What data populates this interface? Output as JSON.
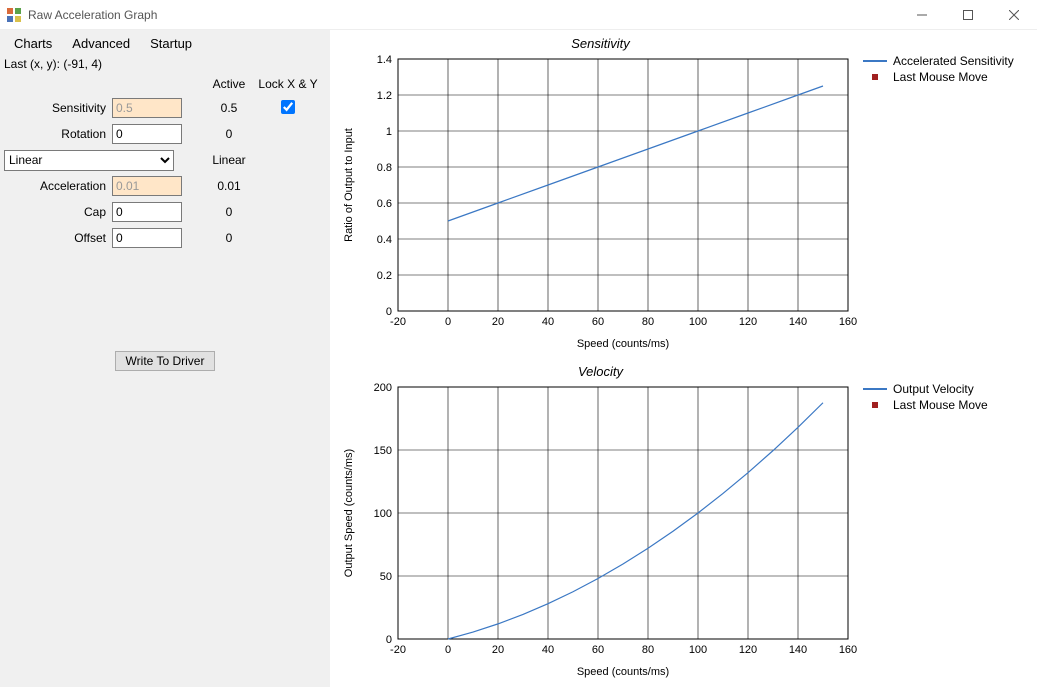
{
  "window": {
    "title": "Raw Acceleration Graph"
  },
  "menu": {
    "items": [
      "Charts",
      "Advanced",
      "Startup"
    ]
  },
  "last_xy_label": "Last (x, y): (-91, 4)",
  "columns": {
    "active": "Active",
    "lock": "Lock X & Y"
  },
  "fields": {
    "sensitivity": {
      "label": "Sensitivity",
      "value": "0.5",
      "active": "0.5",
      "highlight": true
    },
    "rotation": {
      "label": "Rotation",
      "value": "0",
      "active": "0",
      "highlight": false
    },
    "acceleration": {
      "label": "Acceleration",
      "value": "0.01",
      "active": "0.01",
      "highlight": true
    },
    "cap": {
      "label": "Cap",
      "value": "0",
      "active": "0",
      "highlight": false
    },
    "offset": {
      "label": "Offset",
      "value": "0",
      "active": "0",
      "highlight": false
    }
  },
  "combo": {
    "selected": "Linear",
    "active": "Linear"
  },
  "lock_xy_checked": true,
  "write_button": "Write To Driver",
  "chart1": {
    "title": "Sensitivity",
    "type": "line",
    "x_label": "Speed (counts/ms)",
    "y_label": "Ratio of Output to Input",
    "xlim": [
      -20,
      160
    ],
    "ylim": [
      0,
      1.4
    ],
    "xticks": [
      -20,
      0,
      20,
      40,
      60,
      80,
      100,
      120,
      140,
      160
    ],
    "yticks": [
      0,
      0.2,
      0.4,
      0.6,
      0.8,
      1.0,
      1.2,
      1.4
    ],
    "series": {
      "line": {
        "label": "Accelerated Sensitivity",
        "color": "#3b78c4",
        "points": [
          [
            0,
            0.5
          ],
          [
            20,
            0.6
          ],
          [
            40,
            0.7
          ],
          [
            60,
            0.8
          ],
          [
            80,
            0.9
          ],
          [
            100,
            1.0
          ],
          [
            120,
            1.1
          ],
          [
            140,
            1.2
          ],
          [
            150,
            1.25
          ]
        ]
      },
      "marker": {
        "label": "Last Mouse Move",
        "color": "#a02020"
      }
    },
    "grid_color": "#000000",
    "line_width": 1.2,
    "font_size_ticks": 11,
    "font_size_title": 13
  },
  "chart2": {
    "title": "Velocity",
    "type": "line",
    "x_label": "Speed (counts/ms)",
    "y_label": "Output Speed (counts/ms)",
    "xlim": [
      -20,
      160
    ],
    "ylim": [
      0,
      200
    ],
    "xticks": [
      -20,
      0,
      20,
      40,
      60,
      80,
      100,
      120,
      140,
      160
    ],
    "yticks": [
      0,
      50,
      100,
      150,
      200
    ],
    "series": {
      "line": {
        "label": "Output Velocity",
        "color": "#3b78c4",
        "points": [
          [
            0,
            0
          ],
          [
            10,
            5.5
          ],
          [
            20,
            12
          ],
          [
            30,
            19.5
          ],
          [
            40,
            28
          ],
          [
            50,
            37.5
          ],
          [
            60,
            48
          ],
          [
            70,
            59.5
          ],
          [
            80,
            72
          ],
          [
            90,
            85.5
          ],
          [
            100,
            100
          ],
          [
            110,
            115.5
          ],
          [
            120,
            132
          ],
          [
            130,
            149.5
          ],
          [
            140,
            168
          ],
          [
            150,
            187.5
          ]
        ]
      },
      "marker": {
        "label": "Last Mouse Move",
        "color": "#a02020"
      }
    },
    "grid_color": "#000000",
    "line_width": 1.2,
    "font_size_ticks": 11,
    "font_size_title": 13
  }
}
